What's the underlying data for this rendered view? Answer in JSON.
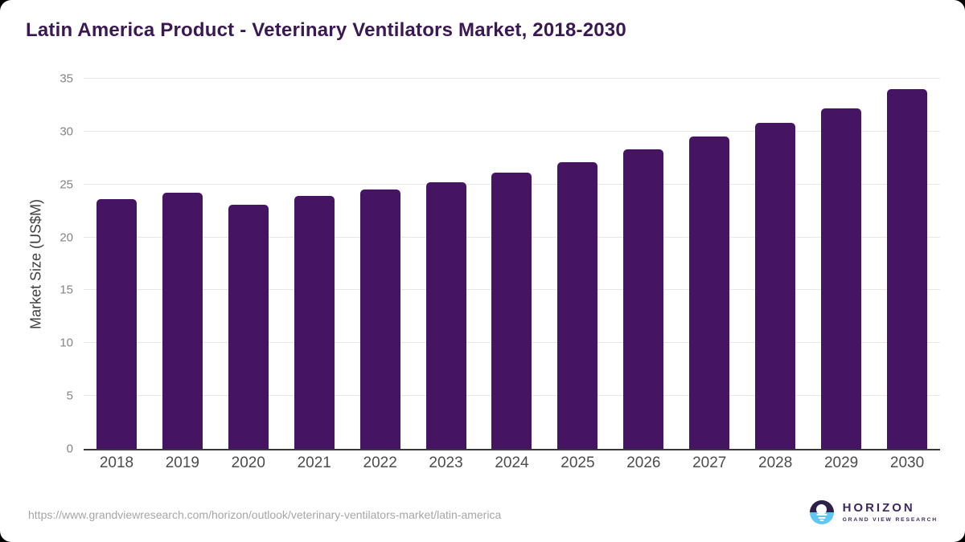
{
  "header": {
    "title": "Latin America Product - Veterinary Ventilators Market, 2018-2030",
    "title_color": "#3b1754"
  },
  "chart_data": {
    "type": "bar",
    "title": "Latin America Product - Veterinary Ventilators Market, 2018-2030",
    "categories": [
      "2018",
      "2019",
      "2020",
      "2021",
      "2022",
      "2023",
      "2024",
      "2025",
      "2026",
      "2027",
      "2028",
      "2029",
      "2030"
    ],
    "values": [
      23.6,
      24.2,
      23.1,
      23.9,
      24.5,
      25.2,
      26.1,
      27.1,
      28.3,
      29.5,
      30.8,
      32.2,
      34.0
    ],
    "xlabel": "",
    "ylabel": "Market Size (US$M)",
    "ylim": [
      0,
      35
    ],
    "yticks": [
      0,
      5,
      10,
      15,
      20,
      25,
      30,
      35
    ],
    "grid": "horizontal-only",
    "legend": "none",
    "bar_color": "#451563",
    "gridline_color": "#e7e7e7",
    "axis_line_color": "#3a3a3a"
  },
  "footer": {
    "source_url": "https://www.grandviewresearch.com/horizon/outlook/veterinary-ventilators-market/latin-america",
    "logo": {
      "name": "HORIZON",
      "subtitle": "GRAND VIEW RESEARCH",
      "brand_dark": "#2b2149",
      "brand_blue": "#5ec8f2",
      "text_color": "#3c2a5d"
    }
  }
}
